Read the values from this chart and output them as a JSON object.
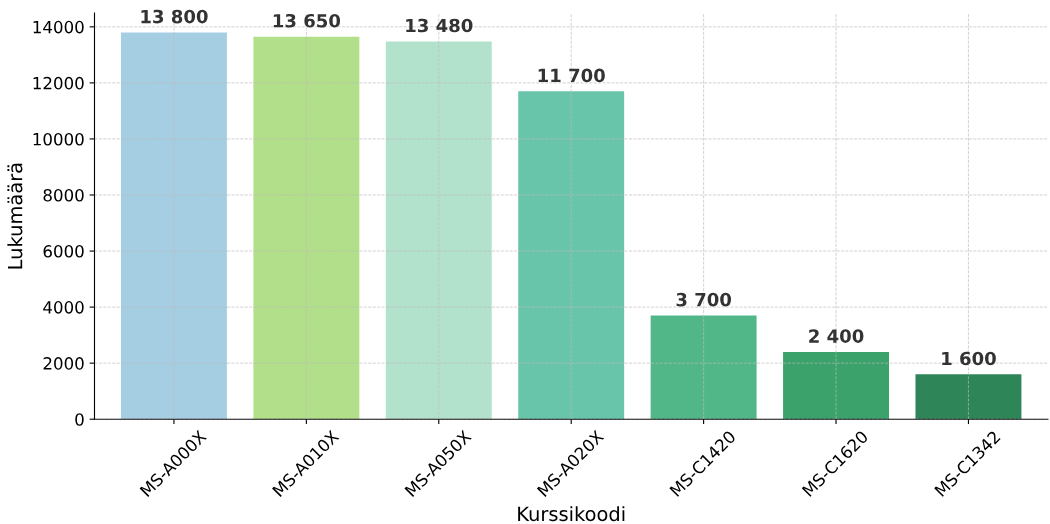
{
  "chart_data": {
    "type": "bar",
    "xlabel": "Kurssikoodi",
    "ylabel": "Lukumäärä",
    "categories": [
      "MS-A000X",
      "MS-A010X",
      "MS-A050X",
      "MS-A020X",
      "MS-C1420",
      "MS-C1620",
      "MS-C1342"
    ],
    "values": [
      13800,
      13650,
      13480,
      11700,
      3700,
      2400,
      1600
    ],
    "value_labels": [
      "13 800",
      "13 650",
      "13 480",
      "11 700",
      "3 700",
      "2 400",
      "1 600"
    ],
    "colors": [
      "#a6cee3",
      "#b2df8a",
      "#b3e2cc",
      "#69c5aa",
      "#52b788",
      "#3aa26a",
      "#2e8658"
    ],
    "ylim": [
      0,
      14490
    ],
    "yticks": [
      0,
      2000,
      4000,
      6000,
      8000,
      10000,
      12000,
      14000
    ],
    "grid": true,
    "legend": false
  }
}
